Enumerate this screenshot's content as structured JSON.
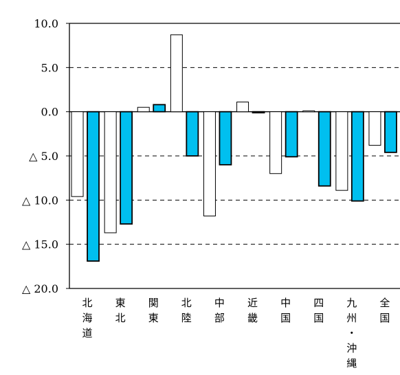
{
  "chart_data": {
    "type": "bar",
    "categories": [
      "北海道",
      "東北",
      "関東",
      "北陸",
      "中部",
      "近畿",
      "中国",
      "四国",
      "九州・沖縄",
      "全国"
    ],
    "category_label_lines": [
      [
        "北",
        "海",
        "道"
      ],
      [
        "東",
        "北"
      ],
      [
        "関",
        "東"
      ],
      [
        "北",
        "陸"
      ],
      [
        "中",
        "部"
      ],
      [
        "近",
        "畿"
      ],
      [
        "中",
        "国"
      ],
      [
        "四",
        "国"
      ],
      [
        "九",
        "州",
        "・",
        "沖",
        "縄"
      ],
      [
        "全",
        "国"
      ]
    ],
    "series": [
      {
        "values": [
          -9.6,
          -13.7,
          0.5,
          8.7,
          -11.8,
          1.1,
          -7.0,
          0.1,
          -8.9,
          -3.8
        ],
        "color": "#ffffff"
      },
      {
        "values": [
          -16.9,
          -12.7,
          0.8,
          -5.0,
          -6.0,
          -0.1,
          -5.1,
          -8.4,
          -10.1,
          -4.6
        ],
        "color": "#00bfef"
      }
    ],
    "ylim": [
      -20,
      10
    ],
    "yticks": [
      10,
      5,
      0,
      -5,
      -10,
      -15,
      -20
    ],
    "ytick_labels": [
      "10.0",
      "5.0",
      "0.0",
      "△ 5.0",
      "△ 10.0",
      "△ 15.0",
      "△ 20.0"
    ],
    "grid": "dashed horizontal",
    "title": "",
    "xlabel": "",
    "ylabel": ""
  }
}
